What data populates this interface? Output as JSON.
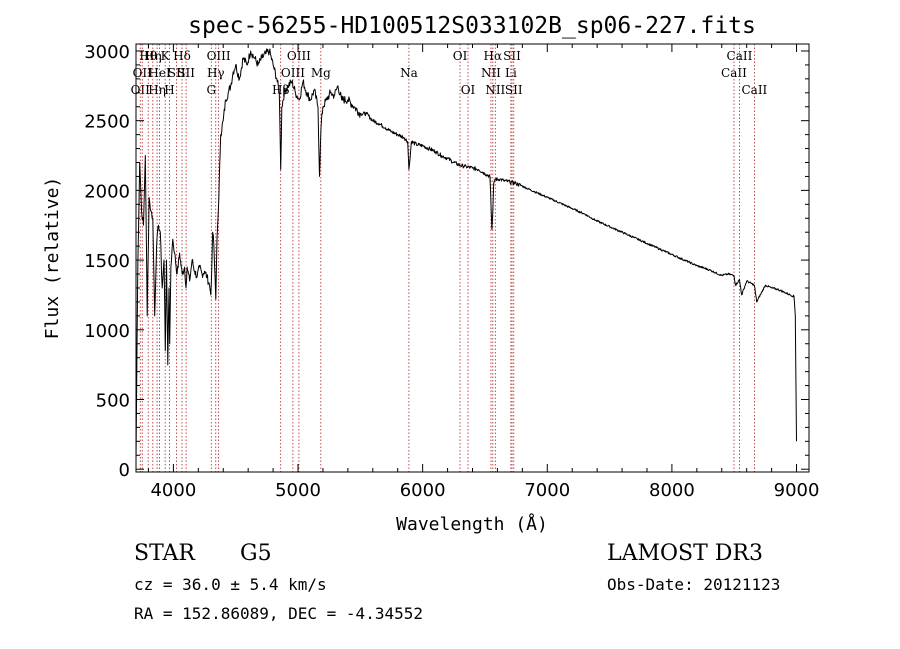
{
  "chart_data": {
    "type": "line",
    "title": "spec-56255-HD100512S033102B_sp06-227.fits",
    "xlabel": "Wavelength (Å)",
    "ylabel": "Flux (relative)",
    "xlim": [
      3700,
      9100
    ],
    "ylim": [
      -20,
      3050
    ],
    "xticks": [
      4000,
      5000,
      6000,
      7000,
      8000,
      9000
    ],
    "yticks": [
      0,
      500,
      1000,
      1500,
      2000,
      2500,
      3000
    ],
    "xtick_labels": [
      "4000",
      "5000",
      "6000",
      "7000",
      "8000",
      "9000"
    ],
    "ytick_labels": [
      "0",
      "500",
      "1000",
      "1500",
      "2000",
      "2500",
      "3000"
    ],
    "series": [
      {
        "name": "spectrum",
        "x": [
          3700,
          3715,
          3730,
          3745,
          3760,
          3775,
          3790,
          3805,
          3820,
          3835,
          3850,
          3865,
          3880,
          3895,
          3910,
          3925,
          3935,
          3945,
          3955,
          3965,
          3970,
          3980,
          3995,
          4010,
          4030,
          4050,
          4070,
          4090,
          4101,
          4110,
          4130,
          4150,
          4170,
          4190,
          4210,
          4230,
          4250,
          4270,
          4290,
          4300,
          4305,
          4315,
          4325,
          4340,
          4350,
          4360,
          4380,
          4400,
          4420,
          4440,
          4460,
          4480,
          4500,
          4530,
          4560,
          4590,
          4620,
          4650,
          4680,
          4710,
          4740,
          4770,
          4800,
          4830,
          4850,
          4861,
          4870,
          4890,
          4920,
          4950,
          4980,
          5010,
          5040,
          5070,
          5100,
          5130,
          5160,
          5172,
          5184,
          5200,
          5230,
          5260,
          5290,
          5320,
          5350,
          5400,
          5450,
          5500,
          5550,
          5600,
          5650,
          5700,
          5750,
          5800,
          5850,
          5880,
          5890,
          5896,
          5910,
          5950,
          6000,
          6050,
          6100,
          6150,
          6200,
          6250,
          6300,
          6350,
          6400,
          6450,
          6500,
          6540,
          6550,
          6556,
          6563,
          6570,
          6580,
          6620,
          6650,
          6700,
          6750,
          6800,
          6900,
          7000,
          7100,
          7200,
          7300,
          7400,
          7500,
          7600,
          7700,
          7800,
          7900,
          8000,
          8100,
          8200,
          8300,
          8400,
          8450,
          8498,
          8510,
          8542,
          8560,
          8600,
          8662,
          8680,
          8750,
          8800,
          8850,
          8900,
          8950,
          8980,
          8990,
          9000
        ],
        "y": [
          50,
          1500,
          2200,
          1850,
          1750,
          2250,
          1100,
          1950,
          1850,
          1800,
          1100,
          1600,
          1750,
          1700,
          1300,
          1500,
          850,
          1500,
          750,
          1300,
          900,
          1450,
          1650,
          1550,
          1400,
          1550,
          1400,
          1450,
          1300,
          1450,
          1350,
          1500,
          1420,
          1380,
          1450,
          1400,
          1420,
          1380,
          1320,
          1250,
          1350,
          1700,
          1600,
          1220,
          1650,
          1850,
          2400,
          2500,
          2650,
          2700,
          2750,
          2850,
          2900,
          2800,
          2950,
          2900,
          3000,
          2950,
          2900,
          2950,
          2980,
          3000,
          2900,
          2800,
          2700,
          2150,
          2600,
          2700,
          2750,
          2780,
          2700,
          2650,
          2780,
          2700,
          2650,
          2720,
          2600,
          2100,
          2450,
          2600,
          2650,
          2700,
          2680,
          2750,
          2650,
          2650,
          2600,
          2550,
          2550,
          2500,
          2480,
          2450,
          2420,
          2400,
          2380,
          2350,
          2150,
          2200,
          2350,
          2330,
          2320,
          2300,
          2280,
          2250,
          2230,
          2200,
          2180,
          2170,
          2160,
          2150,
          2120,
          2100,
          1850,
          1720,
          1850,
          2050,
          2080,
          2080,
          2070,
          2060,
          2050,
          2030,
          1990,
          1950,
          1910,
          1870,
          1830,
          1780,
          1740,
          1700,
          1660,
          1620,
          1580,
          1540,
          1500,
          1460,
          1430,
          1390,
          1400,
          1390,
          1320,
          1360,
          1250,
          1350,
          1320,
          1200,
          1320,
          1300,
          1290,
          1270,
          1250,
          1240,
          1100,
          200
        ]
      }
    ],
    "lines": [
      {
        "w": 3734,
        "row": 2,
        "label": "OII"
      },
      {
        "w": 3750,
        "row": 1,
        "label": "OII"
      },
      {
        "w": 3798,
        "row": 0,
        "label": "Hθ"
      },
      {
        "w": 3835,
        "row": 0,
        "label": "Hη"
      },
      {
        "w": 3869,
        "row": 2,
        "label": "Hη"
      },
      {
        "w": 3889,
        "row": 1,
        "label": "HeI"
      },
      {
        "w": 3934,
        "row": 0,
        "label": "K"
      },
      {
        "w": 3969,
        "row": 2,
        "label": "H"
      },
      {
        "w": 4026,
        "row": 1,
        "label": "SII"
      },
      {
        "w": 4069,
        "row": 0,
        "label": "Hδ"
      },
      {
        "w": 4102,
        "row": 1,
        "label": "SII"
      },
      {
        "w": 4304,
        "row": 2,
        "label": "G"
      },
      {
        "w": 4340,
        "row": 1,
        "label": "Hγ"
      },
      {
        "w": 4363,
        "row": 0,
        "label": "OIII"
      },
      {
        "w": 4861,
        "row": 2,
        "label": "Hβ"
      },
      {
        "w": 4959,
        "row": 1,
        "label": "OIII"
      },
      {
        "w": 5007,
        "row": 0,
        "label": "OIII"
      },
      {
        "w": 5183,
        "row": 1,
        "label": "Mg"
      },
      {
        "w": 5890,
        "row": 1,
        "label": "Na"
      },
      {
        "w": 6300,
        "row": 0,
        "label": "OI"
      },
      {
        "w": 6364,
        "row": 2,
        "label": "OI"
      },
      {
        "w": 6548,
        "row": 1,
        "label": "NII"
      },
      {
        "w": 6563,
        "row": 0,
        "label": "Hα"
      },
      {
        "w": 6583,
        "row": 2,
        "label": "NII"
      },
      {
        "w": 6708,
        "row": 1,
        "label": "Li"
      },
      {
        "w": 6717,
        "row": 0,
        "label": "SII"
      },
      {
        "w": 6731,
        "row": 2,
        "label": "SII"
      },
      {
        "w": 8498,
        "row": 1,
        "label": "CaII"
      },
      {
        "w": 8542,
        "row": 0,
        "label": "CaII"
      },
      {
        "w": 8662,
        "row": 2,
        "label": "CaII"
      }
    ]
  },
  "footer": {
    "object_class": "STAR",
    "subclass": "G5",
    "survey": "LAMOST DR3",
    "redshift": "cz = 36.0 ± 5.4 km/s",
    "obs_date": "Obs-Date: 20121123",
    "coords": "RA = 152.86089, DEC =  -4.34552"
  },
  "colors": {
    "spectrum": "#000000",
    "line_markers": "#b22222"
  }
}
